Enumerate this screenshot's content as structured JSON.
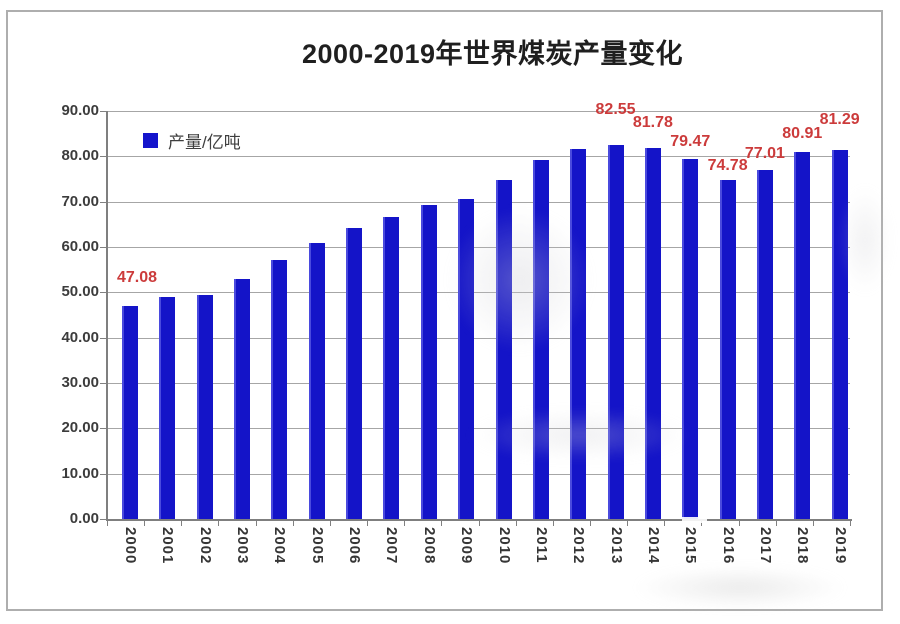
{
  "page": {
    "background": "#ffffff",
    "frame_border_color": "#aeaeae"
  },
  "header": {
    "title": "2000-2019年世界煤炭产量变化"
  },
  "legend": {
    "label": "产量/亿吨",
    "marker_color": "#1414cc"
  },
  "y_axis": {
    "tick_labels": [
      "90.00",
      "80.00",
      "70.00",
      "60.00",
      "50.00",
      "40.00",
      "30.00",
      "20.00",
      "10.00",
      "0.00"
    ]
  },
  "x_axis": {
    "tick_labels": [
      "2000",
      "2001",
      "2002",
      "2003",
      "2004",
      "2005",
      "2006",
      "2007",
      "2008",
      "2009",
      "2010",
      "2011",
      "2012",
      "2013",
      "2014",
      "2015",
      "2016",
      "2017",
      "2018",
      "2019"
    ]
  },
  "chart_data": {
    "type": "bar",
    "title": "2000-2019年世界煤炭产量变化",
    "series_name": "产量/亿吨",
    "categories": [
      "2000",
      "2001",
      "2002",
      "2003",
      "2004",
      "2005",
      "2006",
      "2007",
      "2008",
      "2009",
      "2010",
      "2011",
      "2012",
      "2013",
      "2014",
      "2015",
      "2016",
      "2017",
      "2018",
      "2019"
    ],
    "values": [
      47.08,
      48.9,
      49.5,
      53.0,
      57.1,
      60.9,
      64.2,
      66.6,
      69.2,
      70.5,
      74.7,
      79.3,
      81.7,
      82.55,
      81.78,
      79.47,
      74.78,
      77.01,
      80.91,
      81.29
    ],
    "data_labels_shown": {
      "2000": "47.08",
      "2013": "82.55",
      "2014": "81.78",
      "2015": "79.47",
      "2016": "74.78",
      "2017": "77.01",
      "2018": "80.91",
      "2019": "81.29"
    },
    "xlabel": "",
    "ylabel": "",
    "ylim": [
      0,
      90
    ],
    "y_tick_step": 10,
    "y_tick_format": "0.00",
    "grid": true,
    "legend_position": "top-left-inside",
    "bar_color": "#1414cc",
    "data_label_color": "#cc3b3b"
  }
}
